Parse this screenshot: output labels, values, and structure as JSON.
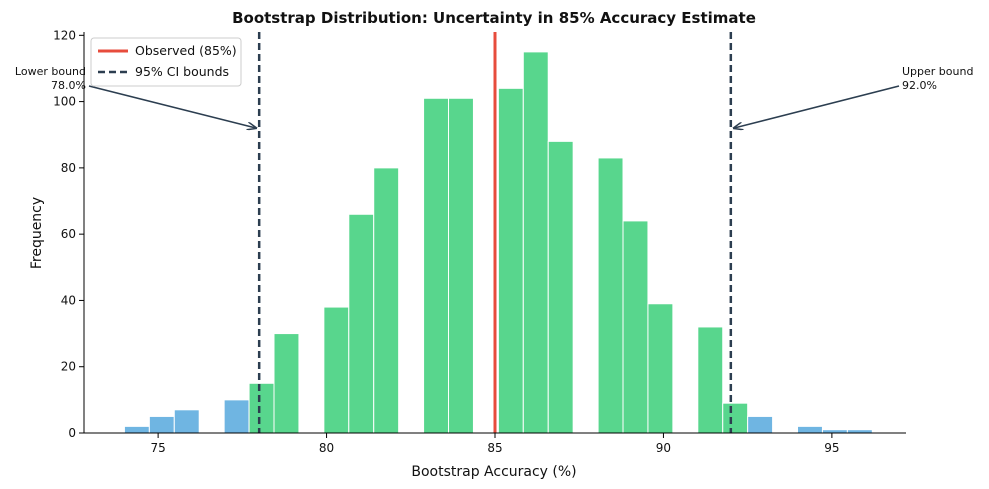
{
  "chart_data": {
    "type": "bar",
    "title": "Bootstrap Distribution: Uncertainty in 85% Accuracy Estimate",
    "xlabel": "Bootstrap Accuracy (%)",
    "ylabel": "Frequency",
    "xlim": [
      72.8,
      97.2
    ],
    "ylim": [
      0,
      121
    ],
    "xticks": [
      75,
      80,
      85,
      90,
      95
    ],
    "yticks": [
      0,
      20,
      40,
      60,
      80,
      100,
      120
    ],
    "grid": false,
    "legend_position": "top-left",
    "bin_width": 0.74,
    "bins": [
      {
        "x": 74.0,
        "count": 2,
        "in_ci": false
      },
      {
        "x": 74.74,
        "count": 5,
        "in_ci": false
      },
      {
        "x": 75.48,
        "count": 7,
        "in_ci": false
      },
      {
        "x": 76.96,
        "count": 10,
        "in_ci": false
      },
      {
        "x": 77.7,
        "count": 15,
        "in_ci": true
      },
      {
        "x": 78.44,
        "count": 30,
        "in_ci": true
      },
      {
        "x": 79.92,
        "count": 38,
        "in_ci": true
      },
      {
        "x": 80.66,
        "count": 66,
        "in_ci": true
      },
      {
        "x": 81.4,
        "count": 80,
        "in_ci": true
      },
      {
        "x": 82.88,
        "count": 101,
        "in_ci": true
      },
      {
        "x": 83.62,
        "count": 101,
        "in_ci": true
      },
      {
        "x": 85.1,
        "count": 104,
        "in_ci": true
      },
      {
        "x": 85.84,
        "count": 115,
        "in_ci": true
      },
      {
        "x": 86.58,
        "count": 88,
        "in_ci": true
      },
      {
        "x": 88.06,
        "count": 83,
        "in_ci": true
      },
      {
        "x": 88.8,
        "count": 64,
        "in_ci": true
      },
      {
        "x": 89.54,
        "count": 39,
        "in_ci": true
      },
      {
        "x": 91.02,
        "count": 32,
        "in_ci": true
      },
      {
        "x": 91.76,
        "count": 9,
        "in_ci": true
      },
      {
        "x": 92.5,
        "count": 5,
        "in_ci": false
      },
      {
        "x": 93.98,
        "count": 2,
        "in_ci": false
      },
      {
        "x": 94.72,
        "count": 1,
        "in_ci": false
      },
      {
        "x": 95.46,
        "count": 1,
        "in_ci": false
      }
    ],
    "observed": {
      "value": 85,
      "label": "Observed (85%)",
      "color": "#e74c3c"
    },
    "ci": {
      "lower": 78.0,
      "upper": 92.0,
      "label": "95% CI bounds",
      "color": "#2c3e50"
    },
    "annotations": {
      "lower": {
        "line1": "Lower bound",
        "line2": "78.0%",
        "arrow_y": 92
      },
      "upper": {
        "line1": "Upper bound",
        "line2": "92.0%",
        "arrow_y": 92
      }
    },
    "colors": {
      "in_ci": "#58d68d",
      "out_ci": "#6fb5e2",
      "bar_edge": "#ffffff"
    }
  }
}
